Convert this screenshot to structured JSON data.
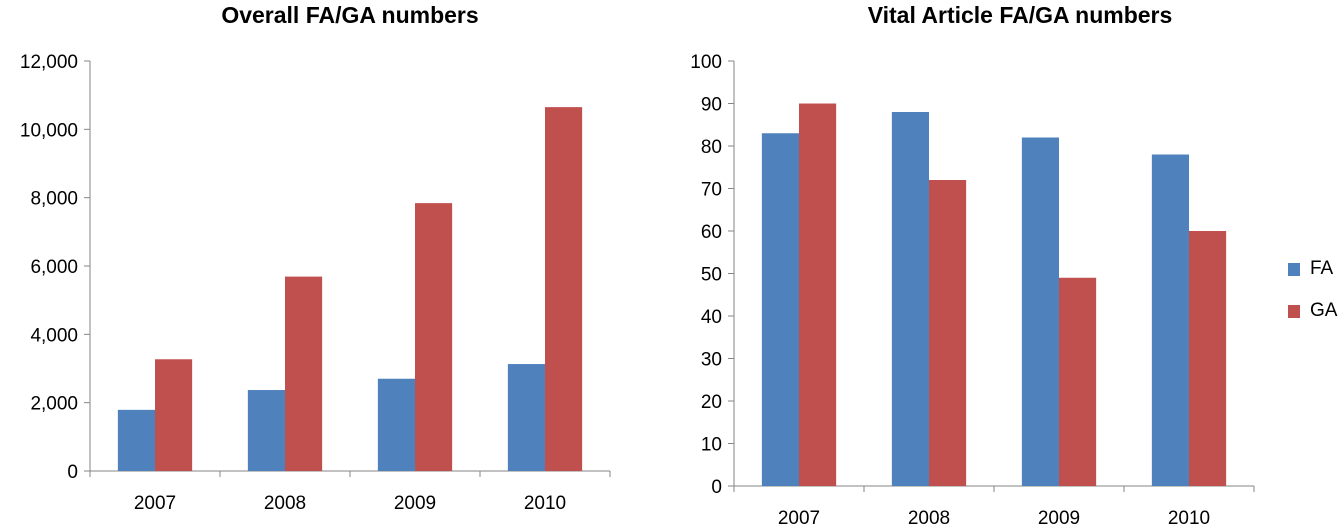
{
  "colors": {
    "FA": "#4F81BD",
    "GA": "#C0504D",
    "axis": "#868686"
  },
  "chart_data": [
    {
      "type": "bar",
      "title": "Overall FA/GA numbers",
      "categories": [
        "2007",
        "2008",
        "2009",
        "2010"
      ],
      "series": [
        {
          "name": "FA",
          "values": [
            1790,
            2370,
            2700,
            3130
          ]
        },
        {
          "name": "GA",
          "values": [
            3270,
            5690,
            7840,
            10650
          ]
        }
      ],
      "ylim": [
        0,
        12000
      ],
      "yticks": [
        0,
        2000,
        4000,
        6000,
        8000,
        10000,
        12000
      ],
      "ytick_labels": [
        "0",
        "2,000",
        "4,000",
        "6,000",
        "8,000",
        "10,000",
        "12,000"
      ],
      "xlabel": "",
      "ylabel": "",
      "grid": false,
      "legend": "none"
    },
    {
      "type": "bar",
      "title": "Vital Article FA/GA numbers",
      "categories": [
        "2007",
        "2008",
        "2009",
        "2010"
      ],
      "series": [
        {
          "name": "FA",
          "values": [
            83,
            88,
            82,
            78
          ]
        },
        {
          "name": "GA",
          "values": [
            90,
            72,
            49,
            60
          ]
        }
      ],
      "ylim": [
        0,
        100
      ],
      "yticks": [
        0,
        10,
        20,
        30,
        40,
        50,
        60,
        70,
        80,
        90,
        100
      ],
      "ytick_labels": [
        "0",
        "10",
        "20",
        "30",
        "40",
        "50",
        "60",
        "70",
        "80",
        "90",
        "100"
      ],
      "xlabel": "",
      "ylabel": "",
      "grid": false,
      "legend": "right"
    }
  ]
}
